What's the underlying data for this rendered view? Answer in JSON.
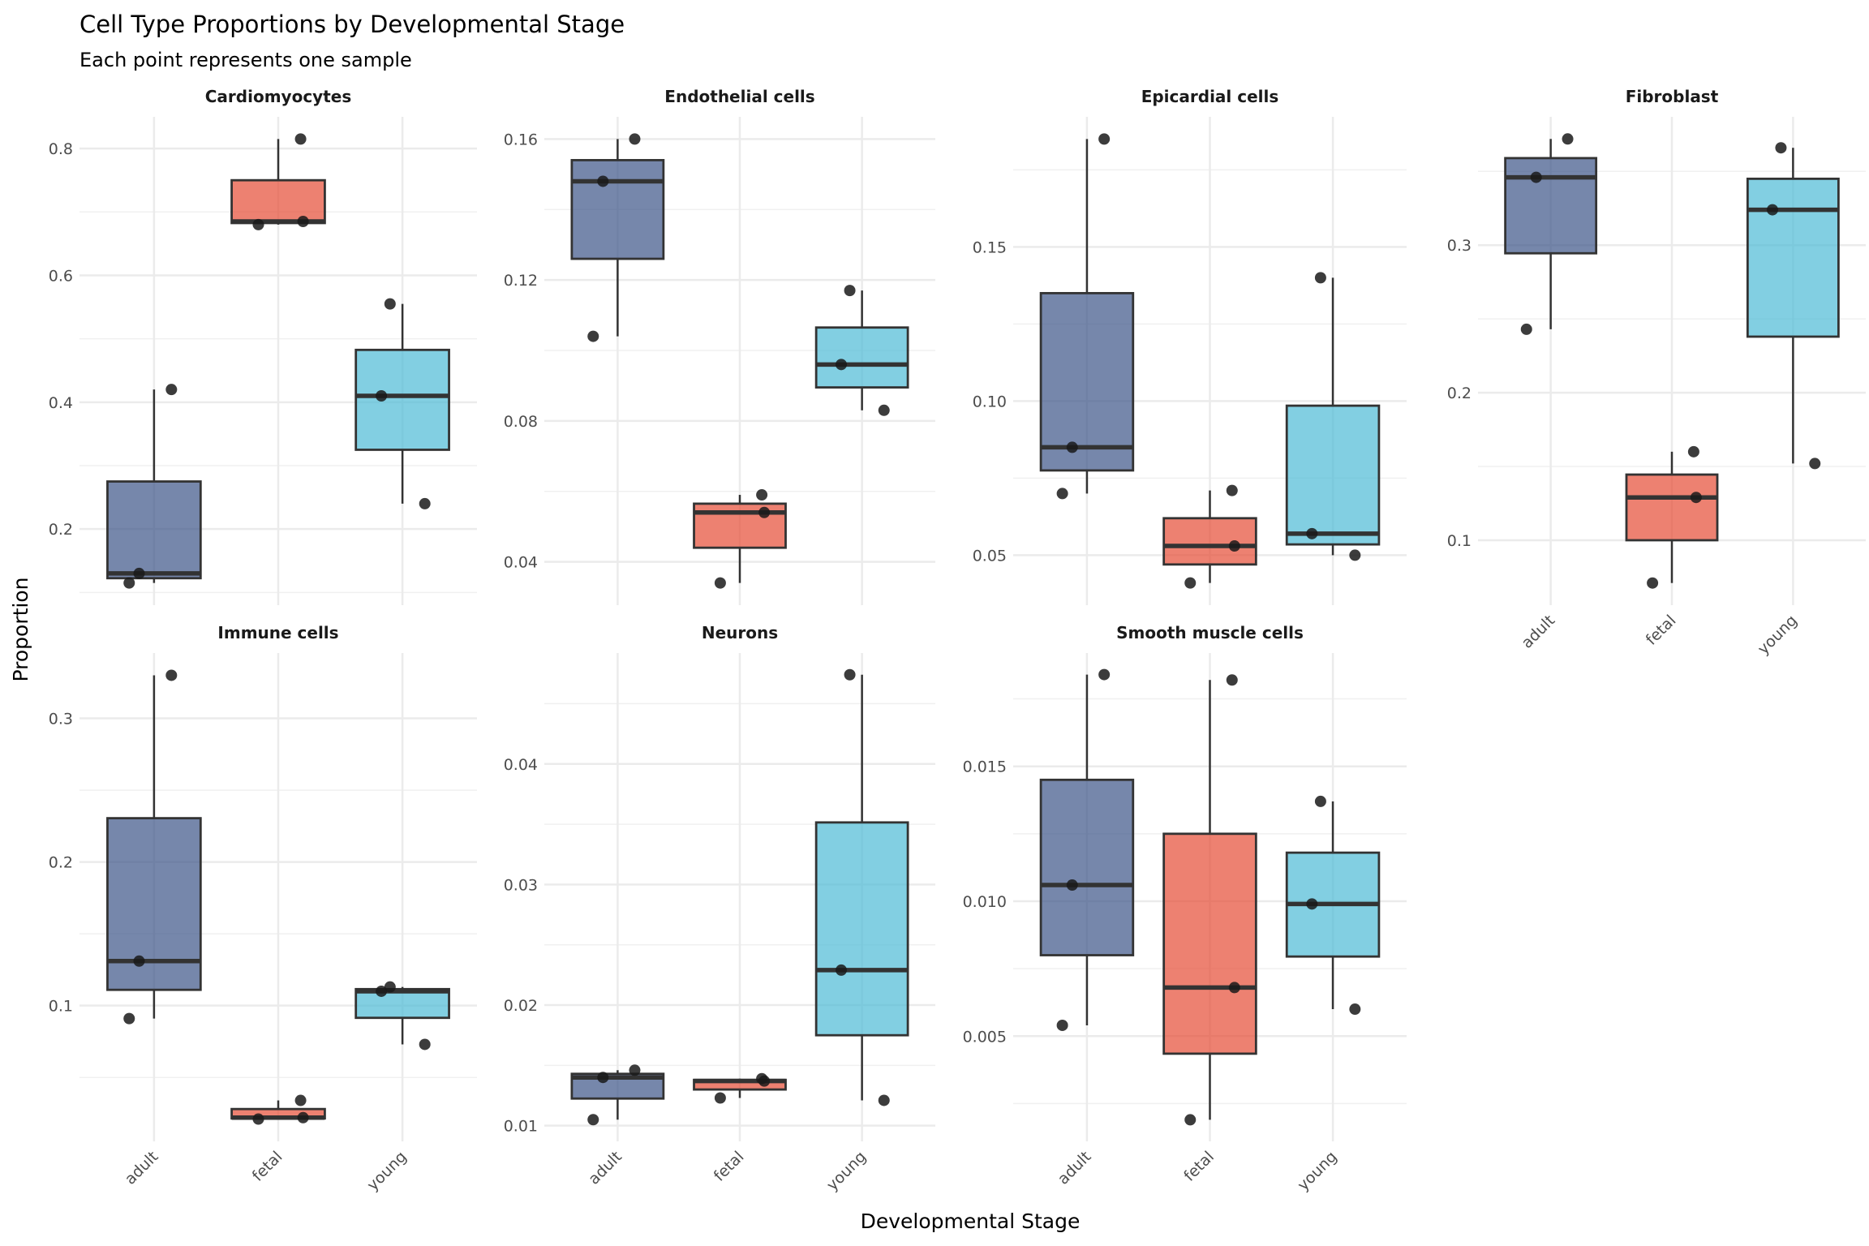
{
  "chart_data": {
    "type": "boxplot",
    "title": "Cell Type Proportions by Developmental Stage",
    "subtitle": "Each point represents one sample",
    "xlabel": "Developmental Stage",
    "ylabel": "Proportion",
    "categories": [
      "adult",
      "fetal",
      "young"
    ],
    "colors": {
      "adult": "#3C5488",
      "fetal": "#E64B35",
      "young": "#4DBBD5"
    },
    "grid": true,
    "legend": "none",
    "panels": [
      {
        "name": "Cardiomyocytes",
        "ylim": [
          0.08,
          0.85
        ],
        "yticks": [
          0.2,
          0.4,
          0.6,
          0.8
        ],
        "tick_labels": [
          "0.2",
          "0.4",
          "0.6",
          "0.8"
        ],
        "points": {
          "adult": [
            0.115,
            0.13,
            0.42
          ],
          "fetal": [
            0.68,
            0.685,
            0.815
          ],
          "young": [
            0.24,
            0.41,
            0.555
          ]
        }
      },
      {
        "name": "Endothelial cells",
        "ylim": [
          0.0277,
          0.1663
        ],
        "yticks": [
          0.04,
          0.08,
          0.12,
          0.16
        ],
        "tick_labels": [
          "0.04",
          "0.08",
          "0.12",
          "0.16"
        ],
        "points": {
          "adult": [
            0.104,
            0.148,
            0.16
          ],
          "fetal": [
            0.034,
            0.054,
            0.059
          ],
          "young": [
            0.083,
            0.096,
            0.117
          ]
        }
      },
      {
        "name": "Epicardial cells",
        "ylim": [
          0.0338,
          0.1922
        ],
        "yticks": [
          0.05,
          0.1,
          0.15
        ],
        "tick_labels": [
          "0.05",
          "0.10",
          "0.15"
        ],
        "points": {
          "adult": [
            0.07,
            0.085,
            0.185
          ],
          "fetal": [
            0.041,
            0.053,
            0.071
          ],
          "young": [
            0.05,
            0.057,
            0.14
          ]
        }
      },
      {
        "name": "Fibroblast",
        "ylim": [
          0.056,
          0.387
        ],
        "yticks": [
          0.1,
          0.2,
          0.3
        ],
        "tick_labels": [
          "0.1",
          "0.2",
          "0.3"
        ],
        "points": {
          "adult": [
            0.243,
            0.346,
            0.372
          ],
          "fetal": [
            0.071,
            0.129,
            0.16
          ],
          "young": [
            0.152,
            0.324,
            0.366
          ]
        }
      },
      {
        "name": "Immune cells",
        "ylim": [
          0.0055,
          0.3455
        ],
        "yticks": [
          0.1,
          0.2,
          0.3
        ],
        "tick_labels": [
          "0.1",
          "0.2",
          "0.3"
        ],
        "points": {
          "adult": [
            0.091,
            0.131,
            0.33
          ],
          "fetal": [
            0.021,
            0.022,
            0.034
          ],
          "young": [
            0.073,
            0.11,
            0.113
          ]
        }
      },
      {
        "name": "Neurons",
        "ylim": [
          0.0087,
          0.0492
        ],
        "yticks": [
          0.01,
          0.02,
          0.03,
          0.04
        ],
        "tick_labels": [
          "0.01",
          "0.02",
          "0.03",
          "0.04"
        ],
        "points": {
          "adult": [
            0.0105,
            0.014,
            0.0146
          ],
          "fetal": [
            0.0123,
            0.0137,
            0.0139
          ],
          "young": [
            0.0121,
            0.0229,
            0.0474
          ]
        }
      },
      {
        "name": "Smooth muscle cells",
        "ylim": [
          0.0011,
          0.0192
        ],
        "yticks": [
          0.005,
          0.01,
          0.015
        ],
        "tick_labels": [
          "0.005",
          "0.010",
          "0.015"
        ],
        "points": {
          "adult": [
            0.0054,
            0.0106,
            0.0184
          ],
          "fetal": [
            0.0019,
            0.0068,
            0.0182
          ],
          "young": [
            0.006,
            0.0099,
            0.0137
          ]
        }
      }
    ]
  }
}
